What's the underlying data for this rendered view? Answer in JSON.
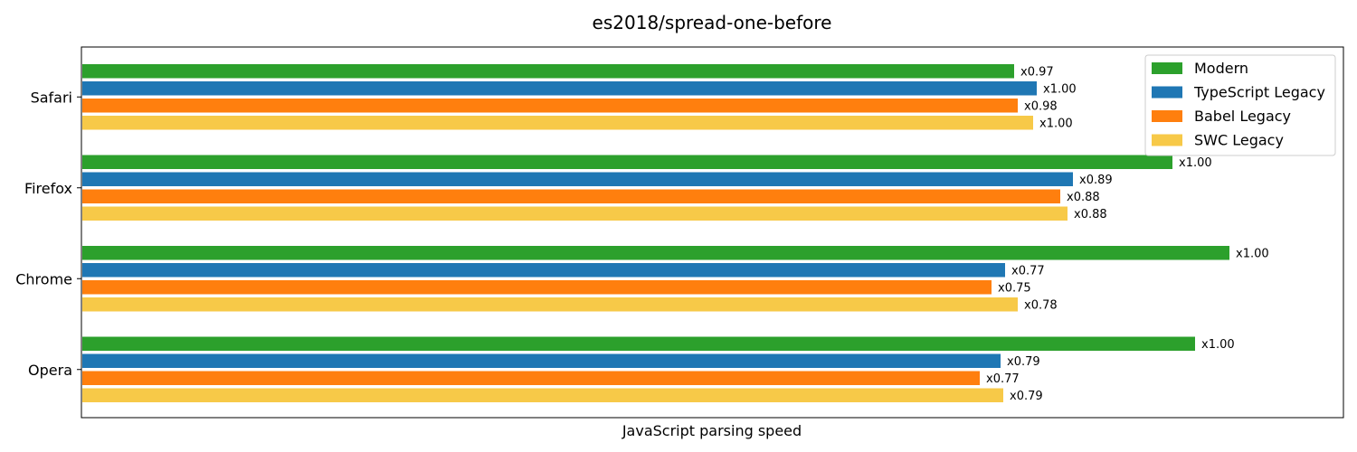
{
  "chart_data": {
    "type": "bar",
    "orientation": "horizontal",
    "title": "es2018/spread-one-before",
    "xlabel": "JavaScript parsing speed",
    "ylabel": "",
    "categories": [
      "Safari",
      "Firefox",
      "Chrome",
      "Opera"
    ],
    "series": [
      {
        "name": "Modern",
        "color": "#2ca02c",
        "values": [
          0.97,
          1.0,
          1.0,
          1.0
        ],
        "labels": [
          "x0.97",
          "x1.00",
          "x1.00",
          "x1.00"
        ],
        "bar_length": [
          824,
          999,
          1062,
          1024
        ]
      },
      {
        "name": "TypeScript Legacy",
        "color": "#1f77b4",
        "values": [
          1.0,
          0.89,
          0.77,
          0.79
        ],
        "labels": [
          "x1.00",
          "x0.89",
          "x0.77",
          "x0.79"
        ],
        "bar_length": [
          849,
          889,
          814,
          809
        ]
      },
      {
        "name": "Babel Legacy",
        "color": "#ff7f0e",
        "values": [
          0.98,
          0.88,
          0.75,
          0.77
        ],
        "labels": [
          "x0.98",
          "x0.88",
          "x0.75",
          "x0.77"
        ],
        "bar_length": [
          828,
          875,
          799,
          786
        ]
      },
      {
        "name": "SWC Legacy",
        "color": "#f7c948",
        "values": [
          1.0,
          0.88,
          0.78,
          0.79
        ],
        "labels": [
          "x1.00",
          "x0.88",
          "x0.78",
          "x0.79"
        ],
        "bar_length": [
          845,
          883,
          828,
          812
        ]
      }
    ],
    "bar_length_max": 1115,
    "legend": "top-right",
    "grid": false
  }
}
